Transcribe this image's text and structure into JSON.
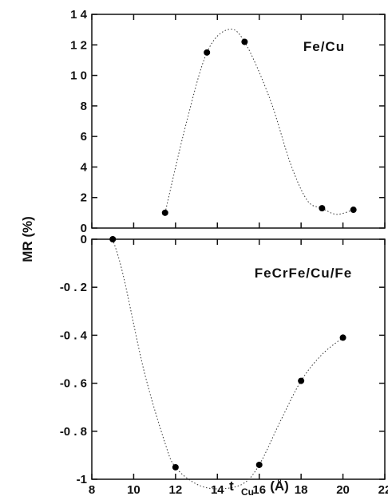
{
  "chart_data": {
    "type": "scatter",
    "xlabel_main": "t",
    "xlabel_sub": "Cu",
    "xlabel_unit": "(Å)",
    "ylabel": "MR (%)",
    "shared_x": {
      "lim": [
        8,
        22
      ],
      "ticks": [
        8,
        10,
        12,
        14,
        16,
        18,
        20,
        22
      ],
      "tick_labels": [
        "8",
        "10",
        "12",
        "14",
        "16",
        "18",
        "20",
        "22"
      ]
    },
    "panels": [
      {
        "label": "Fe/Cu",
        "ylim": [
          0,
          14
        ],
        "yticks": [
          0,
          2,
          4,
          6,
          8,
          10,
          12,
          14
        ],
        "ytick_labels": [
          "0",
          "2",
          "4",
          "6",
          "8",
          "1 0",
          "1 2",
          "1 4"
        ],
        "points": [
          {
            "x": 11.5,
            "y": 1.0
          },
          {
            "x": 13.5,
            "y": 11.5
          },
          {
            "x": 15.3,
            "y": 12.2
          },
          {
            "x": 19.0,
            "y": 1.3
          },
          {
            "x": 20.5,
            "y": 1.2
          }
        ],
        "curve": [
          {
            "x": 11.5,
            "y": 1.0
          },
          {
            "x": 12.5,
            "y": 6.8
          },
          {
            "x": 13.5,
            "y": 11.5
          },
          {
            "x": 14.5,
            "y": 13.0
          },
          {
            "x": 15.3,
            "y": 12.2
          },
          {
            "x": 16.5,
            "y": 8.5
          },
          {
            "x": 17.5,
            "y": 4.2
          },
          {
            "x": 18.3,
            "y": 1.8
          },
          {
            "x": 19.0,
            "y": 1.3
          },
          {
            "x": 19.7,
            "y": 0.9
          },
          {
            "x": 20.5,
            "y": 1.2
          }
        ]
      },
      {
        "label": "FeCrFe/Cu/Fe",
        "ylim": [
          -1,
          0
        ],
        "yticks": [
          0,
          -0.2,
          -0.4,
          -0.6,
          -0.8,
          -1
        ],
        "ytick_labels": [
          "0",
          "-0 . 2",
          "-0 . 4",
          "-0 . 6",
          "-0 . 8",
          "-1"
        ],
        "points": [
          {
            "x": 9.0,
            "y": 0.0
          },
          {
            "x": 12.0,
            "y": -0.95
          },
          {
            "x": 16.0,
            "y": -0.94
          },
          {
            "x": 18.0,
            "y": -0.59
          },
          {
            "x": 20.0,
            "y": -0.41
          }
        ],
        "curve": [
          {
            "x": 9.0,
            "y": 0.0
          },
          {
            "x": 9.5,
            "y": -0.15
          },
          {
            "x": 10.5,
            "y": -0.55
          },
          {
            "x": 11.5,
            "y": -0.85
          },
          {
            "x": 12.0,
            "y": -0.95
          },
          {
            "x": 13.0,
            "y": -1.02
          },
          {
            "x": 14.0,
            "y": -1.04
          },
          {
            "x": 15.2,
            "y": -1.02
          },
          {
            "x": 16.0,
            "y": -0.94
          },
          {
            "x": 17.0,
            "y": -0.76
          },
          {
            "x": 18.0,
            "y": -0.59
          },
          {
            "x": 19.0,
            "y": -0.48
          },
          {
            "x": 20.0,
            "y": -0.41
          }
        ]
      }
    ]
  }
}
